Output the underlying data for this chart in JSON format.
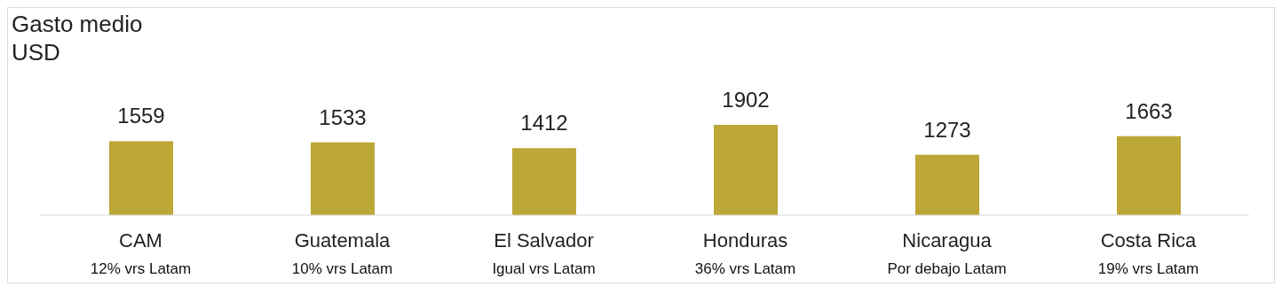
{
  "chart_data": {
    "type": "bar",
    "title": "Gasto medio",
    "subtitle": "USD",
    "categories": [
      "CAM",
      "Guatemala",
      "El Salvador",
      "Honduras",
      "Nicaragua",
      "Costa Rica"
    ],
    "values": [
      1559,
      1533,
      1412,
      1902,
      1273,
      1663
    ],
    "color": "#bda737",
    "data_labels": true,
    "grid": false,
    "legend": false,
    "tick_labels": "x",
    "annotations": [
      "12% vrs Latam",
      "10% vrs Latam",
      "Igual vrs Latam",
      "36% vrs Latam",
      "Por debajo Latam",
      "19% vrs Latam"
    ]
  }
}
